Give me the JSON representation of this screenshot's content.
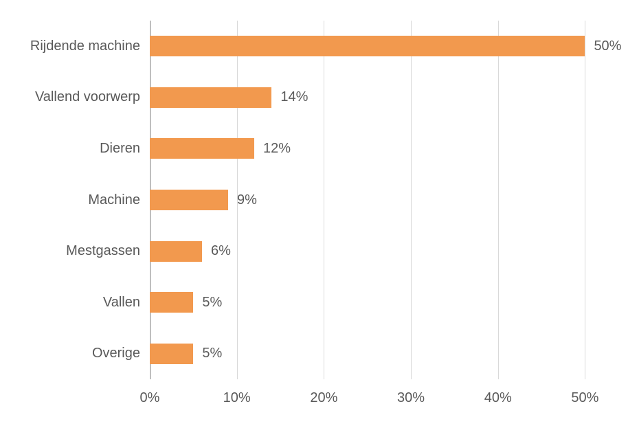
{
  "chart_data": {
    "type": "bar",
    "orientation": "horizontal",
    "title": "",
    "xlabel": "",
    "ylabel": "",
    "categories": [
      "Rijdende machine",
      "Vallend voorwerp",
      "Dieren",
      "Machine",
      "Mestgassen",
      "Vallen",
      "Overige"
    ],
    "values": [
      50,
      14,
      12,
      9,
      6,
      5,
      5
    ],
    "value_labels": [
      "50%",
      "14%",
      "12%",
      "9%",
      "6%",
      "5%",
      "5%"
    ],
    "x_tick_values": [
      0,
      10,
      20,
      30,
      40,
      50
    ],
    "x_tick_labels": [
      "0%",
      "10%",
      "20%",
      "30%",
      "40%",
      "50%"
    ],
    "xlim": [
      0,
      56.2
    ],
    "grid": true,
    "legend": false,
    "bar_color": "#F2994E",
    "gridline_color": "#D9D9D9",
    "axis_line_color": "#BFBFBF",
    "text_color": "#595959",
    "background_color": "#FFFFFF"
  }
}
